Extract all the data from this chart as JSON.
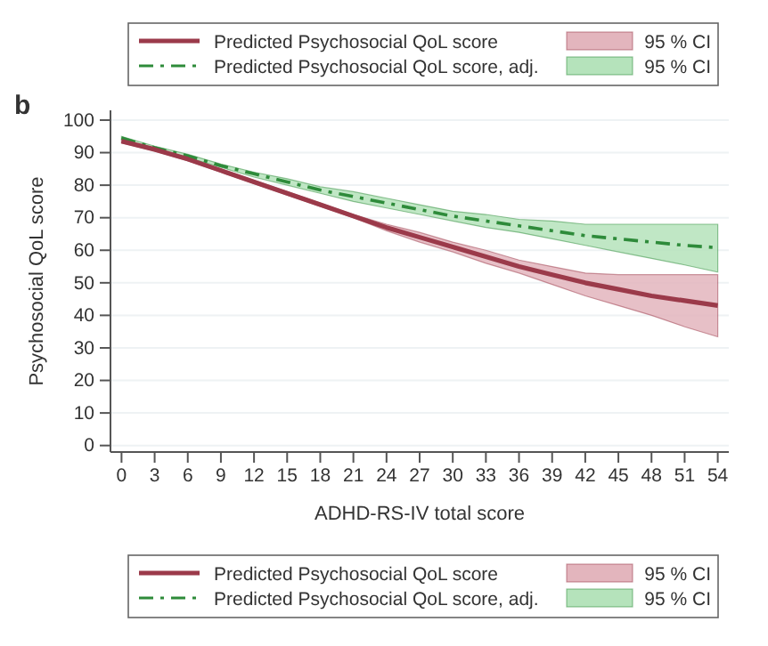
{
  "chart_data": {
    "type": "line",
    "xlabel": "ADHD-RS-IV total score",
    "ylabel": "Psychosocial QoL score",
    "annotations": [
      "b",
      "95 % CI",
      "95 % CI"
    ],
    "x": [
      0,
      3,
      6,
      9,
      12,
      15,
      18,
      21,
      24,
      27,
      30,
      33,
      36,
      39,
      42,
      45,
      48,
      51,
      54
    ],
    "series": [
      {
        "name": "Predicted Psychosocial QoL score",
        "color": "#9b3a4a",
        "line_style": "solid",
        "values": [
          93.5,
          91,
          88,
          84.5,
          81,
          77.5,
          74,
          70.5,
          67,
          64,
          61,
          58,
          55,
          52.5,
          50,
          48,
          46,
          44.5,
          43
        ],
        "lower": [
          93,
          90.5,
          87.5,
          84,
          80.5,
          77,
          73.5,
          70,
          66,
          62.5,
          59.5,
          56,
          53,
          49.5,
          46,
          43,
          40,
          36.5,
          33.4
        ],
        "upper": [
          94,
          91.5,
          88.5,
          85,
          81.5,
          78,
          74.5,
          71,
          68,
          65.5,
          62.5,
          60,
          57,
          55,
          53,
          52.5,
          52.5,
          52.5,
          52.5
        ]
      },
      {
        "name": "Predicted Psychosocial QoL score, adj.",
        "color": "#2e8b3a",
        "line_style": "dashed",
        "values": [
          94.5,
          91.5,
          89,
          86,
          83.5,
          81,
          78.5,
          76.5,
          74.5,
          72.5,
          70.5,
          69,
          67.5,
          66,
          64.5,
          63.5,
          62.5,
          61.5,
          60.8
        ],
        "lower": [
          94,
          91,
          88.5,
          85.5,
          82.5,
          80,
          77.5,
          75,
          73,
          71,
          69,
          67,
          65.5,
          63.5,
          61.5,
          59.5,
          57.5,
          55.5,
          53.3
        ],
        "upper": [
          95,
          92,
          89.5,
          86.5,
          84,
          82,
          79.5,
          78,
          76,
          74,
          72,
          71,
          69.5,
          69,
          68,
          68,
          68,
          68,
          68
        ]
      }
    ],
    "xlim": [
      -1,
      55
    ],
    "xticks": [
      0,
      3,
      6,
      9,
      12,
      15,
      18,
      21,
      24,
      27,
      30,
      33,
      36,
      39,
      42,
      45,
      48,
      51,
      54
    ],
    "ylim": [
      -2,
      103
    ],
    "yticks": [
      0,
      10,
      20,
      30,
      40,
      50,
      60,
      70,
      80,
      90,
      100
    ],
    "grid": "y",
    "legend": "top"
  }
}
